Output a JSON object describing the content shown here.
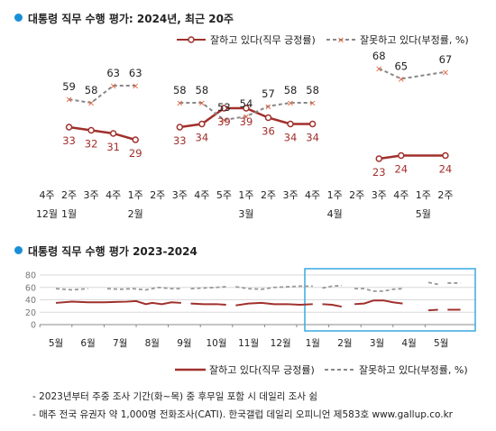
{
  "chart1": {
    "title": "대통령 직무 수행 평가: 2024년, 최근 20주",
    "legend": {
      "approve": "잘하고 있다(직무 긍정률)",
      "disapprove": "잘못하고 있다(부정률, %)"
    },
    "colors": {
      "approve": "#a0302c",
      "disapprove": "#888888",
      "disapprove_marker": "#e0603a"
    }
  },
  "chart2": {
    "title": "대통령 직무 수행 평가 2023-2024",
    "legend": {
      "approve": "잘하고 있다(직무 긍정률)",
      "disapprove": "잘못하고 있다(부정률, %)"
    },
    "highlight_color": "#3aa8e0"
  },
  "footnotes": [
    "- 2023년부터 주중 조사 기간(화~목) 중 후무일 포함 시 데일리 조사 쉼",
    "- 매주 전국 유권자 약 1,000명 전화조사(CATI). 한국갤럽 데일리 오피니언 제583호 www.gallup.co.kr"
  ],
  "chart_data": [
    {
      "type": "line",
      "title": "대통령 직무 수행 평가: 2024년, 최근 20주",
      "x_week_labels": [
        "4주",
        "2주",
        "3주",
        "4주",
        "1주",
        "2주",
        "3주",
        "4주",
        "5주",
        "1주",
        "2주",
        "3주",
        "4주",
        "1주",
        "2주",
        "3주",
        "4주",
        "1주",
        "2주"
      ],
      "x_month_labels": [
        {
          "label": "12월",
          "at": 0
        },
        {
          "label": "1월",
          "at": 1
        },
        {
          "label": "2월",
          "at": 4
        },
        {
          "label": "3월",
          "at": 9
        },
        {
          "label": "4월",
          "at": 13
        },
        {
          "label": "5월",
          "at": 17
        }
      ],
      "series": [
        {
          "name": "잘하고 있다(직무 긍정률)",
          "segments": [
            {
              "x": [
                1,
                2,
                3,
                4
              ],
              "values": [
                33,
                32,
                31,
                29
              ]
            },
            {
              "x": [
                6,
                7,
                8,
                9,
                10,
                11,
                12
              ],
              "values": [
                33,
                34,
                39,
                39,
                36,
                34,
                34
              ]
            },
            {
              "x": [
                15,
                16,
                18
              ],
              "values": [
                23,
                24,
                24
              ]
            }
          ]
        },
        {
          "name": "잘못하고 있다(부정률, %)",
          "segments": [
            {
              "x": [
                1,
                2,
                3,
                4
              ],
              "values": [
                59,
                58,
                63,
                63
              ]
            },
            {
              "x": [
                6,
                7,
                8,
                9,
                10,
                11,
                12
              ],
              "values": [
                58,
                58,
                53,
                54,
                57,
                58,
                58
              ]
            },
            {
              "x": [
                15,
                16,
                18
              ],
              "values": [
                68,
                65,
                67
              ]
            }
          ]
        }
      ]
    },
    {
      "type": "line",
      "title": "대통령 직무 수행 평가 2023-2024",
      "yticks": [
        0,
        20,
        40,
        60,
        80
      ],
      "ylim": [
        0,
        80
      ],
      "x_labels": [
        "5월",
        "6월",
        "7월",
        "8월",
        "9월",
        "10월",
        "11월",
        "12월",
        "1월",
        "2월",
        "3월",
        "4월",
        "5월"
      ],
      "series": [
        {
          "name": "잘하고 있다(직무 긍정률)",
          "segments": [
            {
              "x": [
                0,
                0.5,
                1,
                1.5,
                2.2,
                2.5,
                2.8,
                3,
                3.3,
                3.6,
                3.9
              ],
              "values": [
                35,
                37,
                36,
                36,
                37,
                38,
                33,
                35,
                33,
                36,
                35
              ]
            },
            {
              "x": [
                4.2,
                4.6,
                5,
                5.3
              ],
              "values": [
                34,
                33,
                33,
                32
              ]
            },
            {
              "x": [
                5.6,
                6,
                6.4,
                6.8,
                7.2,
                7.6,
                8
              ],
              "values": [
                31,
                34,
                35,
                33,
                33,
                32,
                33
              ]
            },
            {
              "x": [
                8.3,
                8.6,
                8.9
              ],
              "values": [
                33,
                32,
                29
              ]
            },
            {
              "x": [
                9.3,
                9.6,
                9.9,
                10.2,
                10.5,
                10.8
              ],
              "values": [
                33,
                34,
                39,
                39,
                36,
                34
              ]
            },
            {
              "x": [
                11.6,
                11.9
              ],
              "values": [
                23,
                24
              ]
            },
            {
              "x": [
                12.2,
                12.6
              ],
              "values": [
                24,
                24
              ]
            }
          ]
        },
        {
          "name": "잘못하고 있다(부정률, %)",
          "segments": [
            {
              "x": [
                0,
                0.5,
                1
              ],
              "values": [
                58,
                56,
                58
              ]
            },
            {
              "x": [
                1.6,
                2,
                2.4,
                2.8,
                3.2,
                3.6,
                3.9
              ],
              "values": [
                58,
                57,
                58,
                56,
                60,
                58,
                58
              ]
            },
            {
              "x": [
                4.2,
                4.6,
                5,
                5.3
              ],
              "values": [
                58,
                59,
                60,
                61
              ]
            },
            {
              "x": [
                5.6,
                6,
                6.4,
                6.8,
                7.2,
                7.6,
                8
              ],
              "values": [
                61,
                58,
                57,
                60,
                61,
                62,
                62
              ]
            },
            {
              "x": [
                8.3,
                8.6,
                8.9
              ],
              "values": [
                59,
                62,
                63
              ]
            },
            {
              "x": [
                9.3,
                9.6,
                9.9,
                10.2,
                10.5,
                10.8
              ],
              "values": [
                58,
                58,
                54,
                54,
                57,
                58
              ]
            },
            {
              "x": [
                11.6,
                11.9
              ],
              "values": [
                68,
                65
              ]
            },
            {
              "x": [
                12.2,
                12.6
              ],
              "values": [
                67,
                67
              ]
            }
          ]
        }
      ]
    }
  ]
}
